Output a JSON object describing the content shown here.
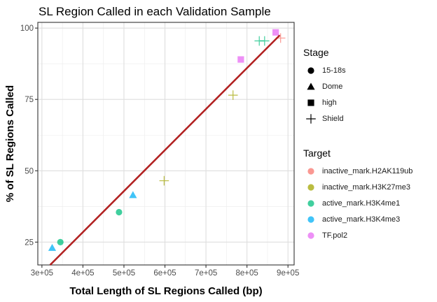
{
  "chart_data": {
    "type": "scatter",
    "title": "SL Region Called in each Validation Sample",
    "xlabel": "Total Length of SL Regions Called (bp)",
    "ylabel": "% of SL Regions Called",
    "xlim": [
      290000,
      915000
    ],
    "ylim": [
      17,
      102
    ],
    "x_ticks": [
      300000,
      400000,
      500000,
      600000,
      700000,
      800000,
      900000
    ],
    "x_tick_labels": [
      "3e+05",
      "4e+05",
      "5e+05",
      "6e+05",
      "7e+05",
      "8e+05",
      "9e+05"
    ],
    "y_ticks": [
      25,
      50,
      75,
      100
    ],
    "y_tick_labels": [
      "25",
      "50",
      "75",
      "100"
    ],
    "grid": true,
    "stage_legend": {
      "title": "Stage",
      "items": [
        {
          "label": "15-18s",
          "shape": "circle"
        },
        {
          "label": "Dome",
          "shape": "triangle"
        },
        {
          "label": "high",
          "shape": "square"
        },
        {
          "label": "Shield",
          "shape": "plus"
        }
      ]
    },
    "target_legend": {
      "title": "Target",
      "items": [
        {
          "label": "inactive_mark.H2AK119ub",
          "color": "#F8766D"
        },
        {
          "label": "inactive_mark.H3K27me3",
          "color": "#A3A500"
        },
        {
          "label": "active_mark.H3K4me1",
          "color": "#00BF7D"
        },
        {
          "label": "active_mark.H3K4me3",
          "color": "#00B0F6"
        },
        {
          "label": "TF.pol2",
          "color": "#E76BF3"
        }
      ]
    },
    "points": [
      {
        "x": 325000,
        "y": 23,
        "stage": "Dome",
        "target": "active_mark.H3K4me3"
      },
      {
        "x": 345000,
        "y": 25,
        "stage": "15-18s",
        "target": "active_mark.H3K4me1"
      },
      {
        "x": 488000,
        "y": 35.5,
        "stage": "15-18s",
        "target": "active_mark.H3K4me1"
      },
      {
        "x": 522000,
        "y": 41.5,
        "stage": "Dome",
        "target": "active_mark.H3K4me3"
      },
      {
        "x": 598000,
        "y": 46.5,
        "stage": "Shield",
        "target": "inactive_mark.H3K27me3"
      },
      {
        "x": 766000,
        "y": 76.5,
        "stage": "Shield",
        "target": "inactive_mark.H3K27me3"
      },
      {
        "x": 785000,
        "y": 89,
        "stage": "high",
        "target": "TF.pol2"
      },
      {
        "x": 830000,
        "y": 95.5,
        "stage": "Shield",
        "target": "active_mark.H3K4me1"
      },
      {
        "x": 843000,
        "y": 95.5,
        "stage": "Shield",
        "target": "active_mark.H3K4me1"
      },
      {
        "x": 870000,
        "y": 98.5,
        "stage": "high",
        "target": "TF.pol2"
      },
      {
        "x": 882000,
        "y": 96.5,
        "stage": "Shield",
        "target": "inactive_mark.H2AK119ub"
      }
    ],
    "fit_line": {
      "x": [
        320000,
        880000
      ],
      "y": [
        17,
        97.5
      ],
      "color": "#B22222"
    }
  }
}
